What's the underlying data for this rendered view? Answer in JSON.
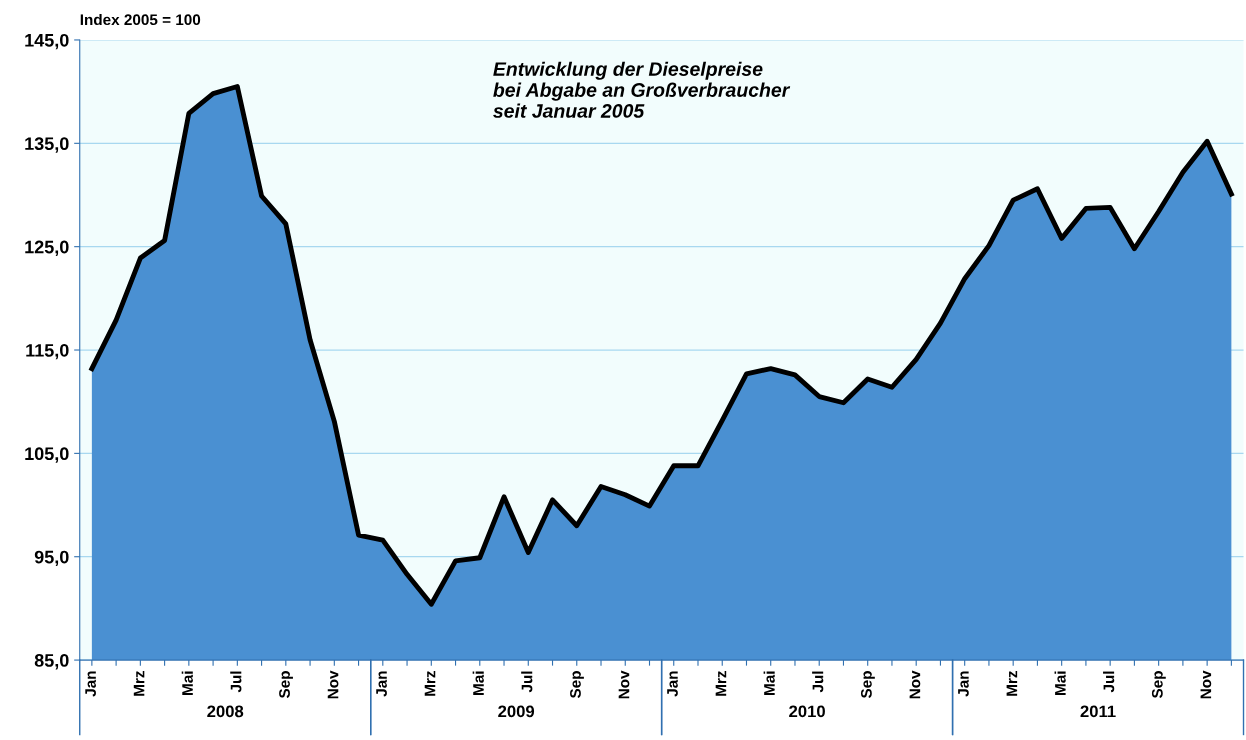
{
  "chart_data": {
    "type": "area",
    "title": "Entwicklung der Dieselpreise\nbei Abgabe an Großverbraucher\nseit Januar 2005",
    "ylabel": "Index 2005 = 100",
    "categories": [
      "Jan",
      null,
      "Mrz",
      null,
      "Mai",
      null,
      "Jul",
      null,
      "Sep",
      null,
      "Nov",
      null,
      "Jan",
      null,
      "Mrz",
      null,
      "Mai",
      null,
      "Jul",
      null,
      "Sep",
      null,
      "Nov",
      null,
      "Jan",
      null,
      "Mrz",
      null,
      "Mai",
      null,
      "Jul",
      null,
      "Sep",
      null,
      "Nov",
      null,
      "Jan",
      null,
      "Mrz",
      null,
      "Mai",
      null,
      "Jul",
      null,
      "Sep",
      null,
      "Nov",
      null
    ],
    "series": [
      {
        "color": "#4a90d2",
        "values": [
          113.2,
          117.9,
          123.9,
          125.6,
          137.9,
          139.8,
          140.5,
          129.9,
          127.2,
          116.0,
          108.1,
          97.1,
          96.6,
          93.3,
          90.4,
          94.6,
          94.9,
          100.8,
          95.4,
          100.5,
          98.0,
          101.8,
          101.0,
          99.9,
          103.8,
          103.8,
          108.2,
          112.7,
          113.2,
          112.6,
          110.5,
          109.9,
          112.2,
          111.4,
          114.1,
          117.6,
          121.9,
          125.1,
          129.5,
          130.6,
          125.8,
          128.7,
          128.8,
          124.8,
          128.4,
          132.2,
          135.2,
          130.1
        ]
      }
    ],
    "ylim": [
      85,
      145
    ],
    "yticks": [
      {
        "value": 85,
        "label": "85,0"
      },
      {
        "value": 95,
        "label": "95,0"
      },
      {
        "value": 105,
        "label": "105,0"
      },
      {
        "value": 115,
        "label": "115,0"
      },
      {
        "value": 125,
        "label": "125,0"
      },
      {
        "value": 135,
        "label": "135,0"
      },
      {
        "value": 145,
        "label": "145,0"
      }
    ],
    "grid": "y",
    "annotations": [
      "2008",
      "2009",
      "2010",
      "2011"
    ]
  }
}
